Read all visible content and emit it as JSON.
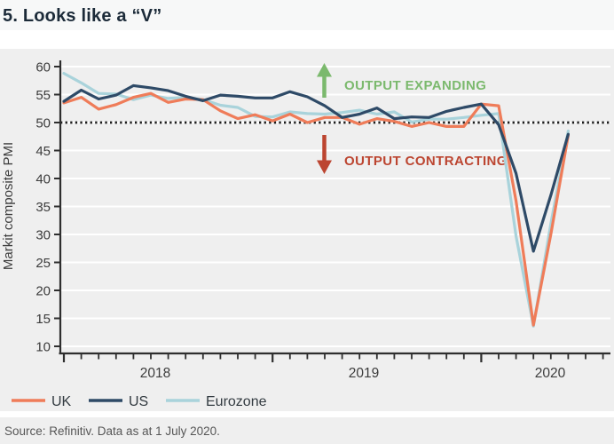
{
  "title": "5. Looks like a “V”",
  "source": "Source: Refinitiv. Data as at 1 July 2020.",
  "chart_data": {
    "type": "line",
    "title": "5. Looks like a “V”",
    "xlabel": "",
    "ylabel": "Markit composite PMI",
    "ylim": [
      10,
      60
    ],
    "y_ticks": [
      10,
      15,
      20,
      25,
      30,
      35,
      40,
      45,
      50,
      55,
      60
    ],
    "x_year_labels": [
      "2018",
      "2019",
      "2020"
    ],
    "grid": true,
    "legend_position": "bottom-left",
    "reference_line": {
      "value": 50,
      "style": "dotted",
      "color": "#1c1c1c"
    },
    "annotations": [
      {
        "text": "OUTPUT EXPANDING",
        "arrow": "up",
        "color": "#7bb96d"
      },
      {
        "text": "OUTPUT CONTRACTING",
        "arrow": "down",
        "color": "#bc4530"
      }
    ],
    "x": [
      "2018-01",
      "2018-02",
      "2018-03",
      "2018-04",
      "2018-05",
      "2018-06",
      "2018-07",
      "2018-08",
      "2018-09",
      "2018-10",
      "2018-11",
      "2018-12",
      "2019-01",
      "2019-02",
      "2019-03",
      "2019-04",
      "2019-05",
      "2019-06",
      "2019-07",
      "2019-08",
      "2019-09",
      "2019-10",
      "2019-11",
      "2019-12",
      "2020-01",
      "2020-02",
      "2020-03",
      "2020-04",
      "2020-05",
      "2020-06"
    ],
    "series": [
      {
        "name": "UK",
        "color": "#ef7c59",
        "values": [
          53.5,
          54.5,
          52.4,
          53.2,
          54.5,
          55.2,
          53.6,
          54.2,
          54.1,
          52.1,
          50.7,
          51.4,
          50.3,
          51.5,
          50.0,
          50.9,
          50.9,
          49.7,
          50.7,
          50.2,
          49.3,
          50.0,
          49.3,
          49.3,
          53.3,
          53.0,
          36.0,
          13.8,
          30.0,
          47.7
        ]
      },
      {
        "name": "US",
        "color": "#2e4a67",
        "values": [
          53.8,
          55.8,
          54.2,
          54.9,
          56.6,
          56.2,
          55.7,
          54.7,
          53.9,
          54.9,
          54.7,
          54.4,
          54.4,
          55.5,
          54.6,
          53.0,
          50.9,
          51.5,
          52.6,
          50.7,
          51.0,
          50.9,
          52.0,
          52.7,
          53.3,
          49.6,
          40.9,
          27.0,
          37.0,
          47.9
        ]
      },
      {
        "name": "Eurozone",
        "color": "#a9d3db",
        "values": [
          58.8,
          57.1,
          55.2,
          55.1,
          54.1,
          54.9,
          54.3,
          54.5,
          54.1,
          53.1,
          52.7,
          51.1,
          51.0,
          51.9,
          51.6,
          51.5,
          51.8,
          52.2,
          51.5,
          51.9,
          50.1,
          50.6,
          50.6,
          50.9,
          51.3,
          51.6,
          29.7,
          13.6,
          31.9,
          48.5
        ]
      }
    ]
  }
}
